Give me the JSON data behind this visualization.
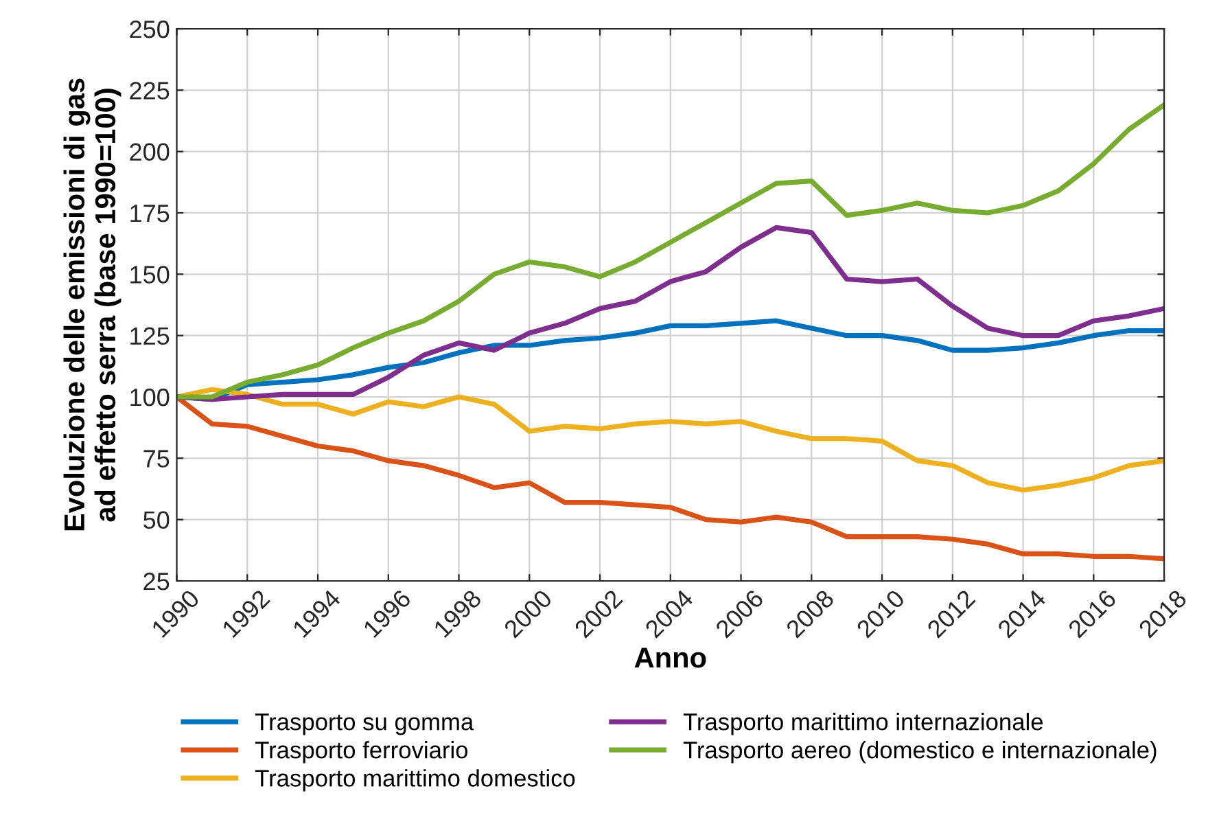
{
  "chart_data": {
    "type": "line",
    "xlabel": "Anno",
    "ylabel": "Evoluzione delle emissioni di gas\nad effetto serra (base 1990=100)",
    "x": [
      1990,
      1991,
      1992,
      1993,
      1994,
      1995,
      1996,
      1997,
      1998,
      1999,
      2000,
      2001,
      2002,
      2003,
      2004,
      2005,
      2006,
      2007,
      2008,
      2009,
      2010,
      2011,
      2012,
      2013,
      2014,
      2015,
      2016,
      2017,
      2018
    ],
    "series": [
      {
        "name": "Trasporto su gomma",
        "color": "#0072bd",
        "values": [
          100,
          99,
          105,
          106,
          107,
          109,
          112,
          114,
          118,
          121,
          121,
          123,
          124,
          126,
          129,
          129,
          130,
          131,
          128,
          125,
          125,
          123,
          119,
          119,
          120,
          122,
          125,
          127,
          127
        ]
      },
      {
        "name": "Trasporto ferroviario",
        "color": "#d95319",
        "values": [
          100,
          89,
          88,
          84,
          80,
          78,
          74,
          72,
          68,
          63,
          65,
          57,
          57,
          56,
          55,
          50,
          49,
          51,
          49,
          43,
          43,
          43,
          42,
          40,
          36,
          36,
          35,
          35,
          34
        ]
      },
      {
        "name": "Trasporto marittimo domestico",
        "color": "#edb120",
        "values": [
          100,
          103,
          101,
          97,
          97,
          93,
          98,
          96,
          100,
          97,
          86,
          88,
          87,
          89,
          90,
          89,
          90,
          86,
          83,
          83,
          82,
          74,
          72,
          65,
          62,
          64,
          67,
          72,
          74
        ]
      },
      {
        "name": "Trasporto marittimo internazionale",
        "color": "#7e2f8e",
        "values": [
          100,
          99,
          100,
          101,
          101,
          101,
          108,
          117,
          122,
          119,
          126,
          130,
          136,
          139,
          147,
          151,
          161,
          169,
          167,
          148,
          147,
          148,
          137,
          128,
          125,
          125,
          131,
          133,
          136
        ]
      },
      {
        "name": "Trasporto aereo (domestico e internazionale)",
        "color": "#77ac30",
        "values": [
          100,
          100,
          106,
          109,
          113,
          120,
          126,
          131,
          139,
          150,
          155,
          153,
          149,
          155,
          163,
          171,
          179,
          187,
          188,
          174,
          176,
          179,
          176,
          175,
          178,
          184,
          195,
          209,
          219
        ]
      }
    ],
    "xlim": [
      1990,
      2018
    ],
    "xticks": [
      1990,
      1992,
      1994,
      1996,
      1998,
      2000,
      2002,
      2004,
      2006,
      2008,
      2010,
      2012,
      2014,
      2016,
      2018
    ],
    "ylim": [
      25,
      250
    ],
    "yticks": [
      25,
      50,
      75,
      100,
      125,
      150,
      175,
      200,
      225,
      250
    ],
    "grid": true,
    "legend": "bottom",
    "marker": "none",
    "line_style": "solid"
  }
}
